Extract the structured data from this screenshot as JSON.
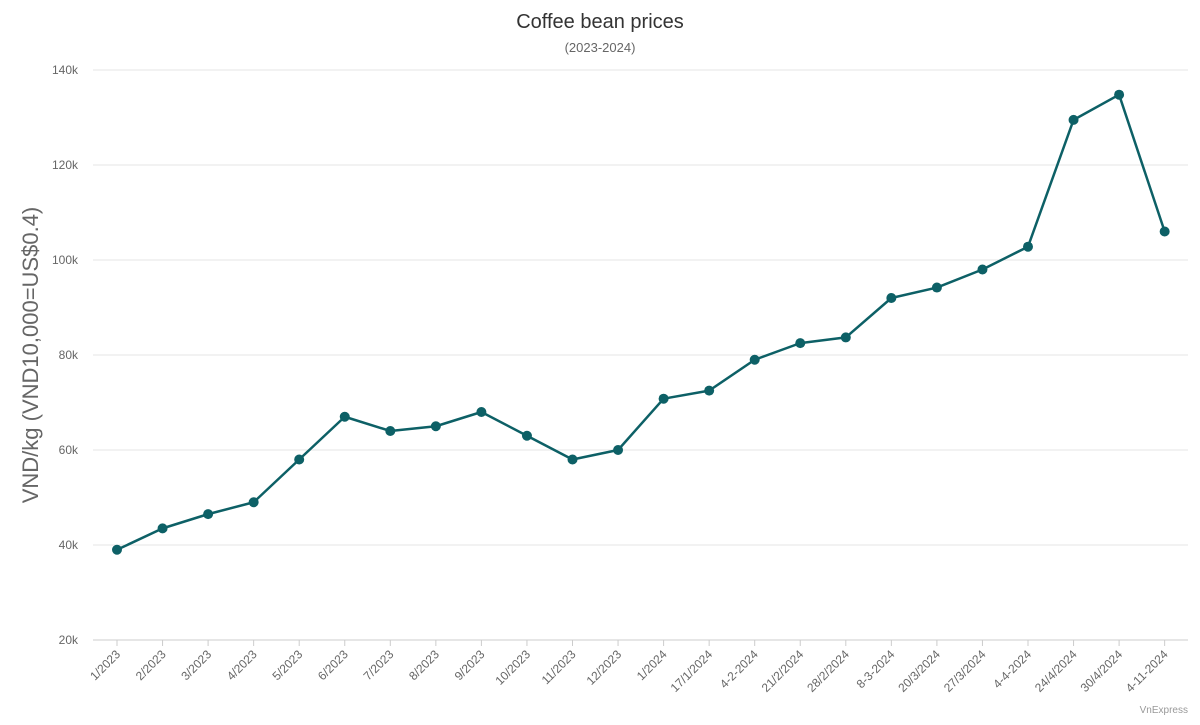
{
  "chart_data": {
    "type": "line",
    "title": "Coffee bean prices",
    "subtitle": "(2023-2024)",
    "xlabel": "",
    "ylabel": "VND/kg (VND10,000=US$0.4)",
    "ylim": [
      20000,
      140000
    ],
    "yticks": [
      20000,
      40000,
      60000,
      80000,
      100000,
      120000,
      140000
    ],
    "ytick_labels": [
      "20k",
      "40k",
      "60k",
      "80k",
      "100k",
      "120k",
      "140k"
    ],
    "grid": true,
    "legend": "none",
    "categories": [
      "1/2023",
      "2/2023",
      "3/2023",
      "4/2023",
      "5/2023",
      "6/2023",
      "7/2023",
      "8/2023",
      "9/2023",
      "10/2023",
      "11/2023",
      "12/2023",
      "1/2024",
      "17/1/2024",
      "4-2-2024",
      "21/2/2024",
      "28/2/2024",
      "8-3-2024",
      "20/3/2024",
      "27/3/2024",
      "4-4-2024",
      "24/4/2024",
      "30/4/2024",
      "4-11-2024"
    ],
    "series": [
      {
        "color": "#0d6066",
        "values": [
          39000,
          43500,
          46500,
          49000,
          58000,
          67000,
          64000,
          65000,
          68000,
          63000,
          58000,
          60000,
          70800,
          72500,
          79000,
          82500,
          83700,
          92000,
          94200,
          98000,
          102800,
          129500,
          134800,
          106000
        ]
      }
    ]
  },
  "credit": "VnExpress"
}
